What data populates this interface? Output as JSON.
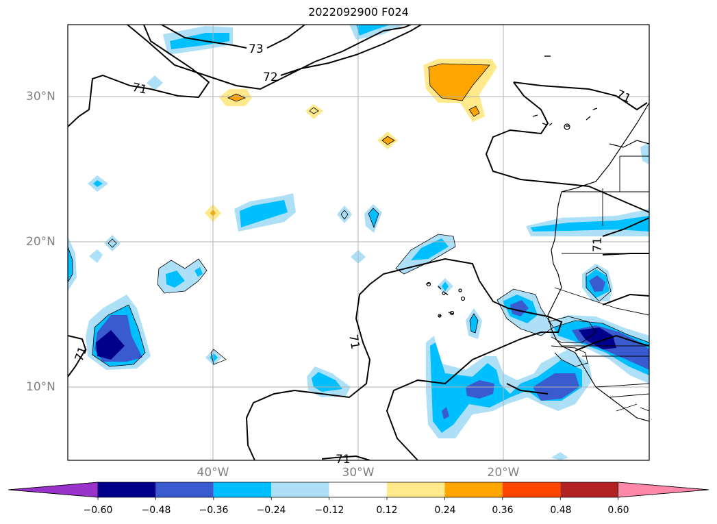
{
  "title": "2022092900 F024",
  "map": {
    "lat_labels": [
      "30°N",
      "20°N",
      "10°N"
    ],
    "lon_labels": [
      "40°W",
      "30°W",
      "20°W"
    ],
    "contour_labels": [
      "73",
      "72",
      "71",
      "71",
      "71",
      "71",
      "71",
      "71"
    ]
  },
  "colorbar": {
    "ticks": [
      "−0.60",
      "−0.48",
      "−0.36",
      "−0.24",
      "−0.12",
      "0.12",
      "0.24",
      "0.36",
      "0.48",
      "0.60"
    ],
    "colors": [
      "#9933cc",
      "#00008b",
      "#3a5bcf",
      "#00bfff",
      "#ade0f7",
      "#ffffff",
      "#ffe98a",
      "#ffa500",
      "#ff4500",
      "#b22222",
      "#ff88aa"
    ]
  }
}
